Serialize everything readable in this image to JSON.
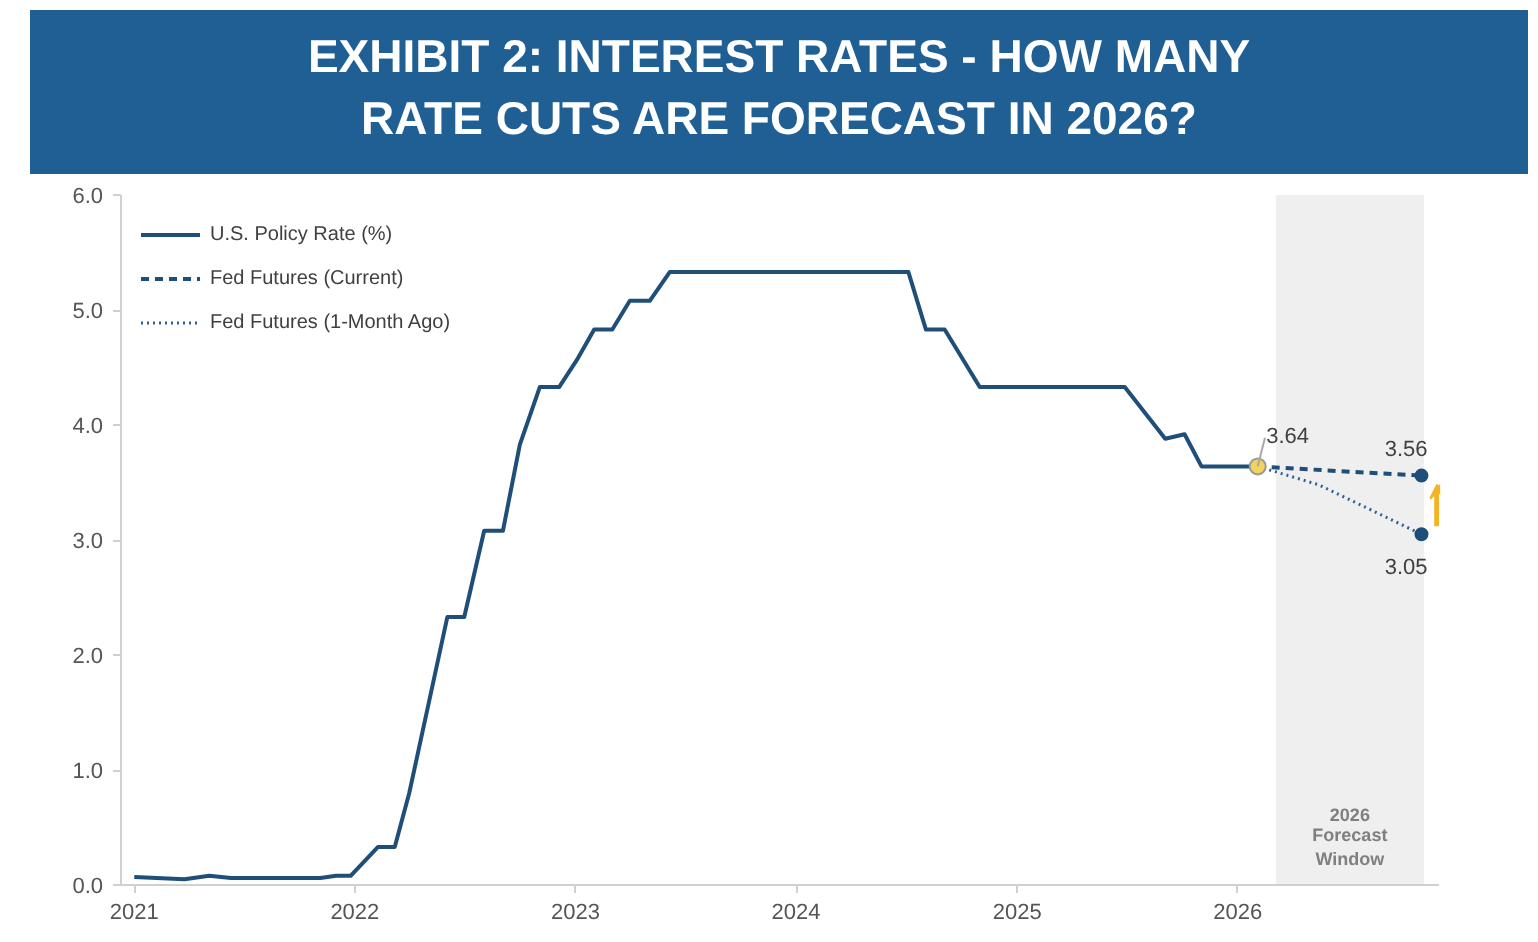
{
  "chart_data": {
    "type": "line",
    "title": "EXHIBIT 2: INTEREST RATES - HOW MANY RATE CUTS ARE FORECAST IN 2026?",
    "xlim": [
      "2020-12-10",
      "2026-11-30"
    ],
    "ylim": [
      0,
      6
    ],
    "xticks": [
      "2021",
      "2022",
      "2023",
      "2024",
      "2025",
      "2026"
    ],
    "yticks": [
      {
        "value": 0,
        "label": "0.0"
      },
      {
        "value": 1,
        "label": "1.0"
      },
      {
        "value": 2,
        "label": "2.0"
      },
      {
        "value": 3,
        "label": "3.0"
      },
      {
        "value": 4,
        "label": "4.0"
      },
      {
        "value": 5,
        "label": "5.0"
      },
      {
        "value": 6,
        "label": "6.0"
      }
    ],
    "grid": false,
    "legend": "top left",
    "series": [
      {
        "name": "U.S. Policy Rate (%)",
        "color": "#1f4e79",
        "line_style": "solid",
        "x": [
          "2021-01-01",
          "2021-03-25",
          "2021-05-05",
          "2021-06-10",
          "2021-11-05",
          "2021-12-01",
          "2021-12-25",
          "2022-02-08",
          "2022-03-08",
          "2022-04-01",
          "2022-06-03",
          "2022-07-01",
          "2022-08-03",
          "2022-09-03",
          "2022-10-01",
          "2022-11-03",
          "2022-12-05",
          "2023-01-05",
          "2023-02-01",
          "2023-03-03",
          "2023-04-01",
          "2023-05-04",
          "2023-06-06",
          "2024-07-05",
          "2024-08-03",
          "2024-09-03",
          "2024-10-31",
          "2025-06-28",
          "2025-09-03",
          "2025-10-05",
          "2025-11-02",
          "2026-02-03"
        ],
        "values": [
          0.07,
          0.05,
          0.08,
          0.06,
          0.06,
          0.08,
          0.08,
          0.33,
          0.33,
          0.8,
          2.33,
          2.33,
          3.08,
          3.08,
          3.83,
          4.33,
          4.33,
          4.58,
          4.83,
          4.83,
          5.08,
          5.08,
          5.33,
          5.33,
          4.83,
          4.83,
          4.33,
          4.33,
          3.88,
          3.92,
          3.64,
          3.64
        ]
      },
      {
        "name": "Fed Futures (Current)",
        "color": "#1f4e79",
        "line_style": "dashed",
        "x": [
          "2026-02-03",
          "2026-06-15",
          "2026-11-01"
        ],
        "values": [
          3.64,
          3.6,
          3.56
        ]
      },
      {
        "name": "Fed Futures (1-Month Ago)",
        "color": "#2e5f9a",
        "line_style": "dotted",
        "x": [
          "2026-02-03",
          "2026-05-15",
          "2026-11-01"
        ],
        "values": [
          3.64,
          3.48,
          3.05
        ]
      }
    ],
    "bands": [
      {
        "axis": "x",
        "from": "2026-03-05",
        "to": "2026-11-05",
        "label": "2026 Forecast Window",
        "color": "#efefef"
      }
    ],
    "annotations": [
      {
        "text": "3.64",
        "x": "2026-02-03",
        "y": 3.64
      },
      {
        "text": "3.56",
        "x": "2026-11-01",
        "y": 3.56
      },
      {
        "text": "3.05",
        "x": "2026-11-01",
        "y": 3.05
      }
    ]
  }
}
